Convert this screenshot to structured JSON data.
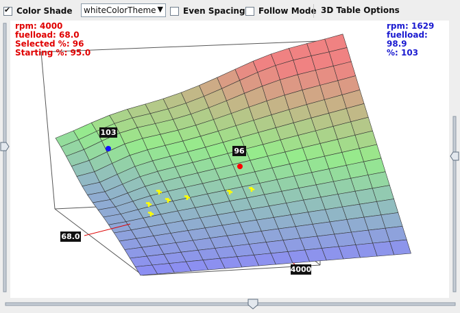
{
  "toolbar": {
    "color_shade_label": "Color Shade",
    "color_shade_checked": true,
    "theme_value": "whiteColorTheme",
    "even_spacing_label": "Even Spacing",
    "even_spacing_checked": false,
    "follow_mode_label": "Follow Mode",
    "follow_mode_checked": false,
    "options_label": "3D Table Options"
  },
  "left_info": {
    "rpm": "rpm: 4000",
    "fuelload": "fuelload: 68.0",
    "selected": "Selected %: 96",
    "starting": "Starting %: 95.0"
  },
  "right_info": {
    "rpm": "rpm: 1629",
    "fuelload": "fuelload: 98.9",
    "pct": "%: 103"
  },
  "labels": {
    "hover_marker": "103",
    "selected_marker": "96",
    "fuelload_axis": "68.0",
    "rpm_axis": "4000"
  },
  "colors": {
    "red_text": "#e00000",
    "blue_text": "#1a1ad0",
    "selected_point": "#ff0000",
    "hover_point": "#1010ff",
    "highlight_cells": "#ffff00"
  },
  "sliders": {
    "left_value": 0.55,
    "right_value": 0.5,
    "bottom_value": 0.57
  }
}
